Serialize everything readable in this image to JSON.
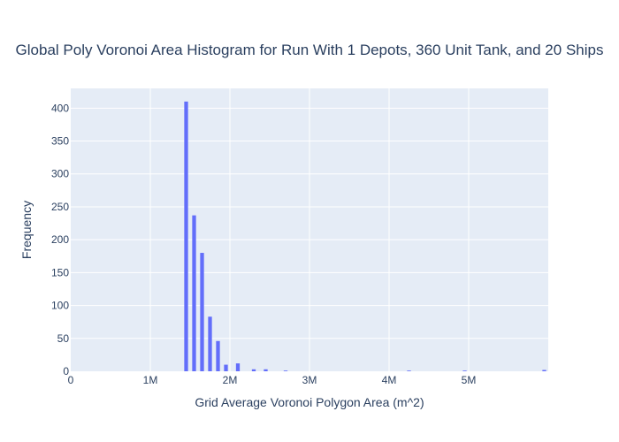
{
  "chart_data": {
    "type": "bar",
    "title": "Global Poly Voronoi Area Histogram for Run With 1 Depots, 360 Unit Tank, and 20 Ships",
    "xlabel": "Grid Average Voronoi Polygon Area (m^2)",
    "ylabel": "Frequency",
    "xlim": [
      0,
      6000000
    ],
    "ylim": [
      0,
      430
    ],
    "x_ticks": [
      {
        "value": 0,
        "label": "0"
      },
      {
        "value": 1000000,
        "label": "1M"
      },
      {
        "value": 2000000,
        "label": "2M"
      },
      {
        "value": 3000000,
        "label": "3M"
      },
      {
        "value": 4000000,
        "label": "4M"
      },
      {
        "value": 5000000,
        "label": "5M"
      }
    ],
    "y_ticks": [
      0,
      50,
      100,
      150,
      200,
      250,
      300,
      350,
      400
    ],
    "bin_width": 100000,
    "bins": [
      {
        "x": 1450000,
        "count": 410
      },
      {
        "x": 1550000,
        "count": 237
      },
      {
        "x": 1650000,
        "count": 180
      },
      {
        "x": 1750000,
        "count": 83
      },
      {
        "x": 1850000,
        "count": 46
      },
      {
        "x": 1950000,
        "count": 10
      },
      {
        "x": 2100000,
        "count": 12
      },
      {
        "x": 2300000,
        "count": 3
      },
      {
        "x": 2450000,
        "count": 3
      },
      {
        "x": 2700000,
        "count": 1
      },
      {
        "x": 4250000,
        "count": 1
      },
      {
        "x": 4950000,
        "count": 1
      },
      {
        "x": 5950000,
        "count": 2
      }
    ],
    "grid": true,
    "colors": {
      "bar": "#636efa",
      "plot_bg": "#e5ecf6",
      "grid": "#ffffff",
      "text": "#2a3f5f"
    }
  }
}
